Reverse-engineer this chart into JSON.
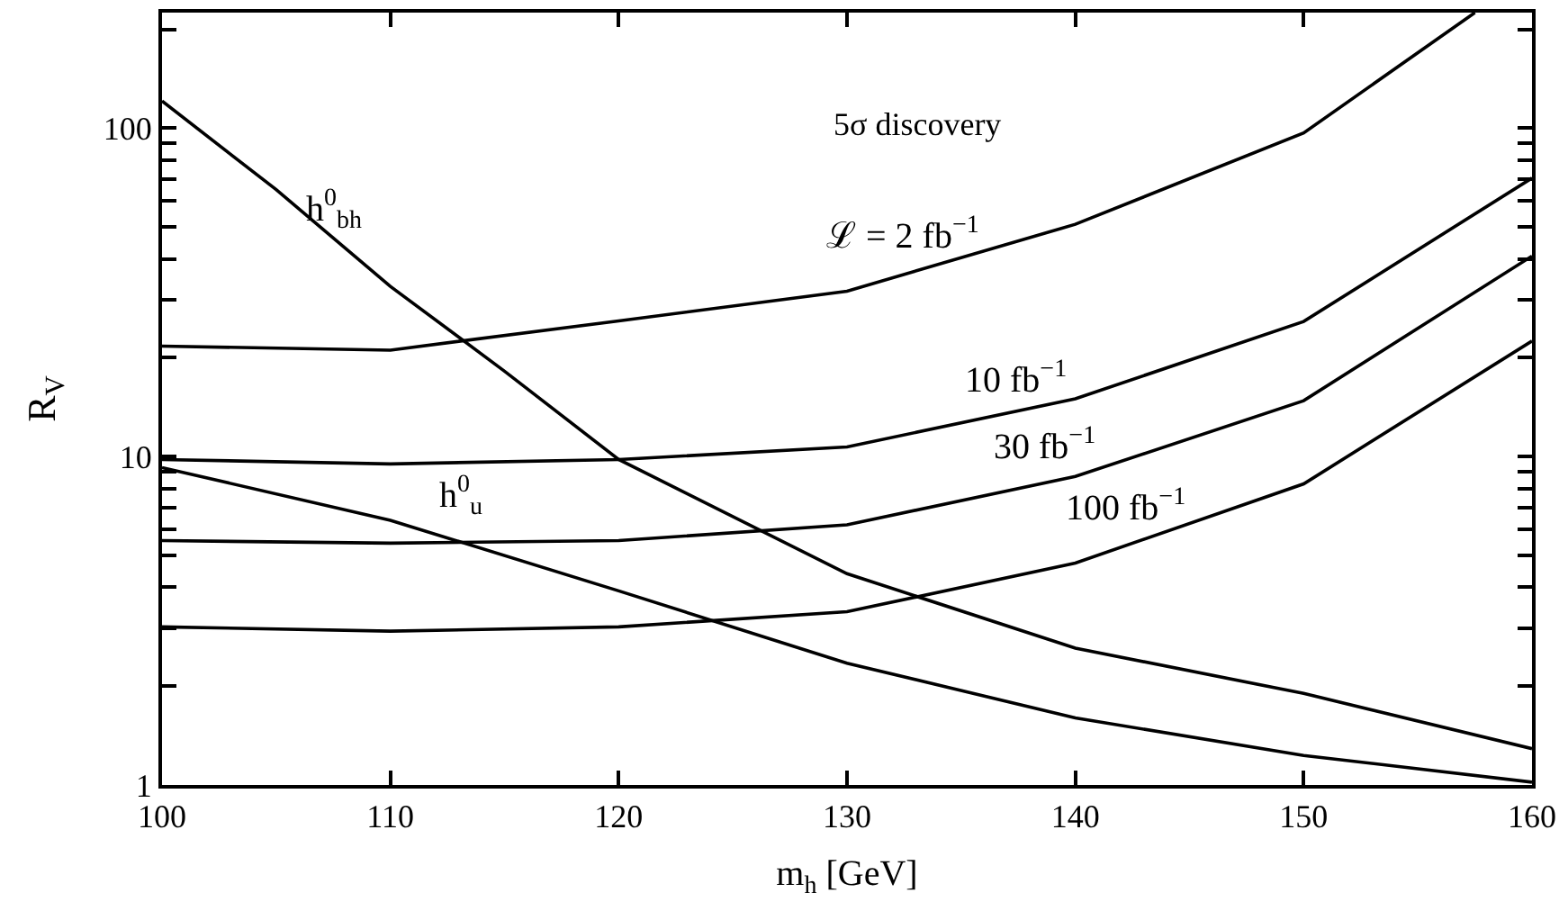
{
  "chart_data": {
    "type": "line",
    "xlabel": "m$_{h}$ [GeV]",
    "ylabel": "R$_{V}$",
    "log": "y",
    "legend": false,
    "marker": "none",
    "line_style": "solid",
    "xlim": [
      100,
      160
    ],
    "xticks": [
      100,
      110,
      120,
      130,
      140,
      150,
      160
    ],
    "ylim": [
      1,
      225
    ],
    "yticks": [
      1,
      {
        "value": 2,
        "label": null
      },
      {
        "value": 3,
        "label": null
      },
      {
        "value": 4,
        "label": null
      },
      {
        "value": 5,
        "label": null
      },
      {
        "value": 6,
        "label": null
      },
      {
        "value": 7,
        "label": null
      },
      {
        "value": 8,
        "label": null
      },
      {
        "value": 9,
        "label": null
      },
      10,
      {
        "value": 20,
        "label": null
      },
      {
        "value": 30,
        "label": null
      },
      {
        "value": 40,
        "label": null
      },
      {
        "value": 50,
        "label": null
      },
      {
        "value": 60,
        "label": null
      },
      {
        "value": 70,
        "label": null
      },
      {
        "value": 80,
        "label": null
      },
      {
        "value": 90,
        "label": null
      },
      100,
      {
        "value": 200,
        "label": null
      }
    ],
    "series": [
      {
        "name": "ℒ = 2 fb$^{−1}$",
        "color": "#000000",
        "x": [
          100,
          110,
          120,
          130,
          140,
          150,
          157.5
        ],
        "values": [
          21.7,
          21.1,
          25.9,
          31.9,
          51,
          96.7,
          225
        ]
      },
      {
        "name": "10 fb$^{−1}$",
        "color": "#000000",
        "x": [
          100,
          110,
          120,
          130,
          140,
          150,
          160
        ],
        "values": [
          9.8,
          9.5,
          9.8,
          10.7,
          15,
          25.8,
          70.5
        ]
      },
      {
        "name": "30 fb$^{−1}$",
        "color": "#000000",
        "x": [
          100,
          110,
          120,
          130,
          140,
          150,
          160
        ],
        "values": [
          5.55,
          5.45,
          5.55,
          6.2,
          8.7,
          14.8,
          40.8
        ]
      },
      {
        "name": "100 fb$^{−1}$",
        "color": "#000000",
        "x": [
          100,
          110,
          120,
          130,
          140,
          150,
          160
        ],
        "values": [
          3.03,
          2.94,
          3.03,
          3.37,
          4.74,
          8.26,
          22.5
        ]
      },
      {
        "name": "h$^{0}$$_{bh}$",
        "color": "#000000",
        "x": [
          100,
          105,
          110,
          115,
          120,
          130,
          140,
          150,
          160
        ],
        "values": [
          121,
          65,
          33,
          18.2,
          9.8,
          4.4,
          2.61,
          1.9,
          1.29
        ]
      },
      {
        "name": "h$^{0}$$_{u}$",
        "color": "#000000",
        "x": [
          100,
          110,
          120,
          130,
          140,
          150,
          160
        ],
        "values": [
          9.26,
          6.4,
          3.9,
          2.35,
          1.6,
          1.23,
          1.02
        ]
      }
    ],
    "annotations": [
      "5σ discovery"
    ]
  }
}
